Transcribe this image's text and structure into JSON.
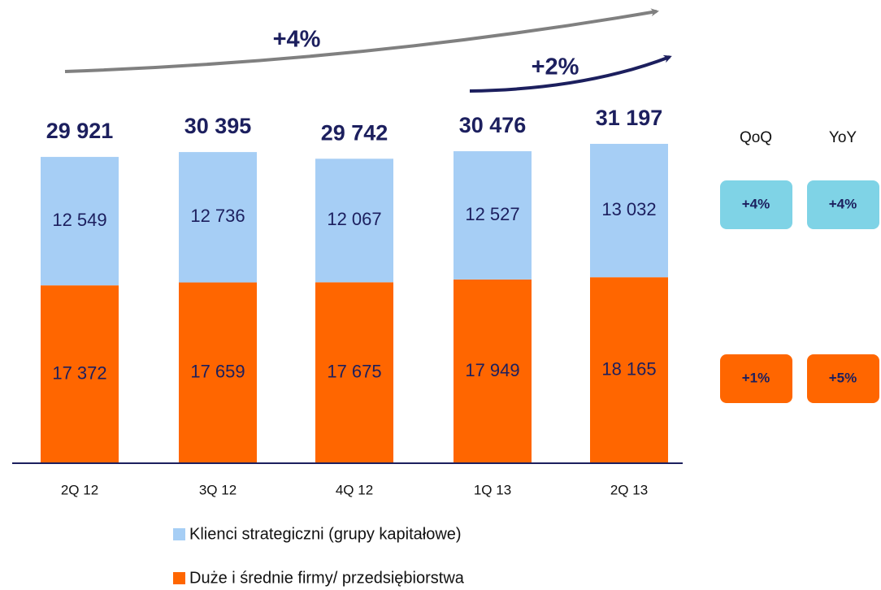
{
  "chart_data": {
    "type": "bar",
    "stacked": true,
    "categories": [
      "2Q 12",
      "3Q 12",
      "4Q 12",
      "1Q 13",
      "2Q 13"
    ],
    "series": [
      {
        "name": "Duże i średnie firmy/ przedsiębiorstwa",
        "color": "#ff6600",
        "values": [
          17372,
          17659,
          17675,
          17949,
          18165
        ],
        "value_labels": [
          "17 372",
          "17 659",
          "17 675",
          "17 949",
          "18 165"
        ]
      },
      {
        "name": "Klienci strategiczni (grupy kapitałowe)",
        "color": "#a6cef5",
        "values": [
          12549,
          12736,
          12067,
          12527,
          13032
        ],
        "value_labels": [
          "12 549",
          "12 736",
          "12 067",
          "12 527",
          "13 032"
        ]
      }
    ],
    "totals": {
      "values": [
        29921,
        30395,
        29742,
        30476,
        31197
      ],
      "value_labels": [
        "29 921",
        "30 395",
        "29 742",
        "30 476",
        "31 197"
      ]
    },
    "annotations": [
      {
        "text": "+4%",
        "color": "#808080"
      },
      {
        "text": "+2%",
        "color": "#1c1f5e"
      }
    ],
    "growth": {
      "columns": [
        "QoQ",
        "YoY"
      ],
      "rows": [
        {
          "color": "#7fd3e6",
          "labels": [
            "+4%",
            "+4%"
          ]
        },
        {
          "color": "#ff6600",
          "labels": [
            "+1%",
            "+5%"
          ]
        }
      ]
    }
  }
}
